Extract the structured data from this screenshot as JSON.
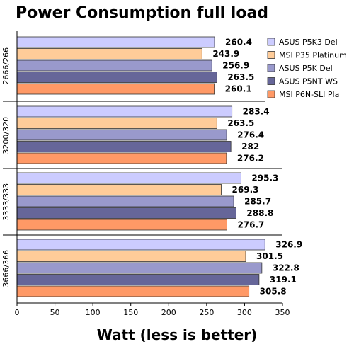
{
  "chart_data": {
    "type": "bar",
    "orientation": "horizontal",
    "title": "Power Consumption full load",
    "xlabel": "Watt (less is better)",
    "ylabel": "",
    "xlim": [
      0,
      350
    ],
    "x_ticks": [
      0,
      50,
      100,
      150,
      200,
      250,
      300,
      350
    ],
    "grid": false,
    "legend_position": "top-right",
    "categories": [
      "2666/266",
      "3200/320",
      "3333/333",
      "3666/366"
    ],
    "series": [
      {
        "name": "ASUS P5K3 Del",
        "color": "#ccccff",
        "values": [
          260.4,
          283.4,
          295.3,
          326.9
        ]
      },
      {
        "name": "MSI P35 Platinum",
        "color": "#ffcc99",
        "values": [
          243.9,
          263.5,
          269.3,
          301.5
        ]
      },
      {
        "name": "ASUS P5K Del",
        "color": "#9999cc",
        "values": [
          256.9,
          276.4,
          285.7,
          322.8
        ]
      },
      {
        "name": "ASUS P5NT WS",
        "color": "#666699",
        "values": [
          263.5,
          282,
          288.8,
          319.1
        ]
      },
      {
        "name": "MSI P6N-SLI Pla",
        "color": "#ff9966",
        "values": [
          260.1,
          276.2,
          276.7,
          305.8
        ]
      }
    ]
  }
}
